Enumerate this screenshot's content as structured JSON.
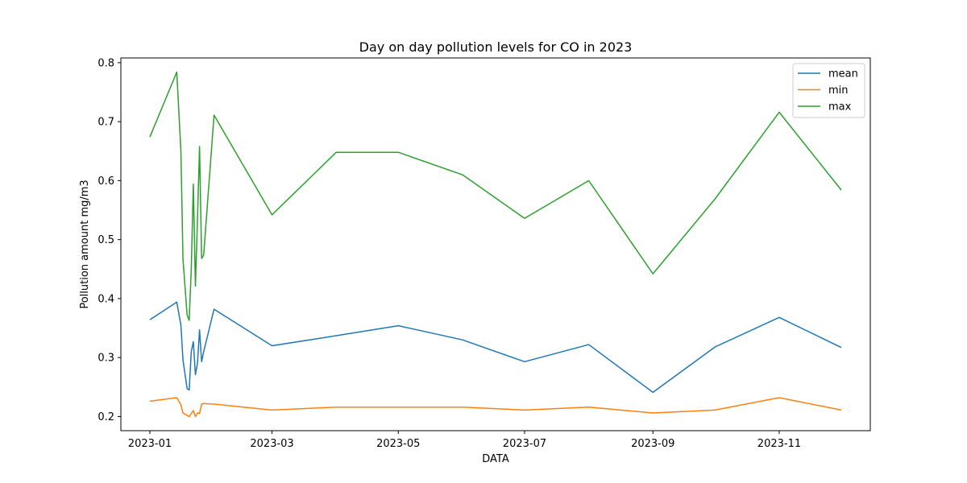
{
  "chart_data": {
    "type": "line",
    "title": "Day on day pollution levels for CO in 2023",
    "xlabel": "DATA",
    "ylabel": "Pollution amount mg/m3",
    "x": [
      "2023-01-01",
      "2023-01-14",
      "2023-01-16",
      "2023-01-17",
      "2023-01-19",
      "2023-01-20",
      "2023-01-21",
      "2023-01-22",
      "2023-01-23",
      "2023-01-24",
      "2023-01-25",
      "2023-01-26",
      "2023-01-27",
      "2023-02-01",
      "2023-03-01",
      "2023-04-01",
      "2023-05-01",
      "2023-06-01",
      "2023-07-01",
      "2023-08-01",
      "2023-09-01",
      "2023-10-01",
      "2023-11-01",
      "2023-12-01"
    ],
    "series": [
      {
        "name": "mean",
        "color": "#1f77b4",
        "values": [
          0.364,
          0.394,
          0.355,
          0.296,
          0.247,
          0.245,
          0.31,
          0.327,
          0.271,
          0.29,
          0.347,
          0.293,
          0.31,
          0.382,
          0.32,
          0.337,
          0.354,
          0.33,
          0.293,
          0.322,
          0.241,
          0.318,
          0.368,
          0.317
        ]
      },
      {
        "name": "min",
        "color": "#ff7f0e",
        "values": [
          0.226,
          0.232,
          0.22,
          0.206,
          0.202,
          0.2,
          0.205,
          0.21,
          0.2,
          0.206,
          0.205,
          0.221,
          0.222,
          0.221,
          0.211,
          0.216,
          0.216,
          0.216,
          0.211,
          0.216,
          0.206,
          0.211,
          0.232,
          0.211
        ]
      },
      {
        "name": "max",
        "color": "#2ca02c",
        "values": [
          0.674,
          0.784,
          0.65,
          0.467,
          0.372,
          0.363,
          0.45,
          0.594,
          0.421,
          0.535,
          0.658,
          0.468,
          0.474,
          0.711,
          0.542,
          0.648,
          0.648,
          0.61,
          0.536,
          0.6,
          0.442,
          0.569,
          0.716,
          0.584
        ]
      }
    ],
    "xlim": [
      "2022-12-18",
      "2023-12-15"
    ],
    "ylim": [
      0.176,
      0.808
    ],
    "xticks": [
      "2023-01-01",
      "2023-03-01",
      "2023-05-01",
      "2023-07-01",
      "2023-09-01",
      "2023-11-01"
    ],
    "xtick_labels": [
      "2023-01",
      "2023-03",
      "2023-05",
      "2023-07",
      "2023-09",
      "2023-11"
    ],
    "yticks": [
      0.2,
      0.3,
      0.4,
      0.5,
      0.6,
      0.7,
      0.8
    ],
    "ytick_labels": [
      "0.2",
      "0.3",
      "0.4",
      "0.5",
      "0.6",
      "0.7",
      "0.8"
    ],
    "grid": false,
    "legend": "top-right"
  }
}
